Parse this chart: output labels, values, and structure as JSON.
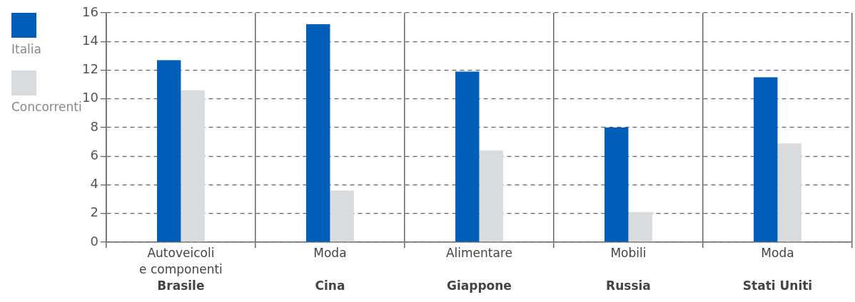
{
  "chart_data": {
    "type": "bar",
    "categories": [
      "Autoveicoli\ne componenti\nBrasile",
      "Moda\n\nCina",
      "Alimentare\n\nGiappone",
      "Mobili\n\nRussia",
      "Moda\n\nStati Uniti"
    ],
    "series": [
      {
        "name": "Italia",
        "color": "#005eb8",
        "values": [
          12.7,
          15.2,
          11.9,
          8.0,
          11.5
        ]
      },
      {
        "name": "Concorrenti",
        "color": "#dadbdd",
        "values": [
          10.6,
          3.6,
          6.4,
          2.1,
          6.9
        ]
      }
    ],
    "ylim": [
      0,
      16
    ],
    "yticks": [
      0,
      2,
      4,
      6,
      8,
      10,
      12,
      14,
      16
    ],
    "grid": true,
    "legend": "left"
  }
}
